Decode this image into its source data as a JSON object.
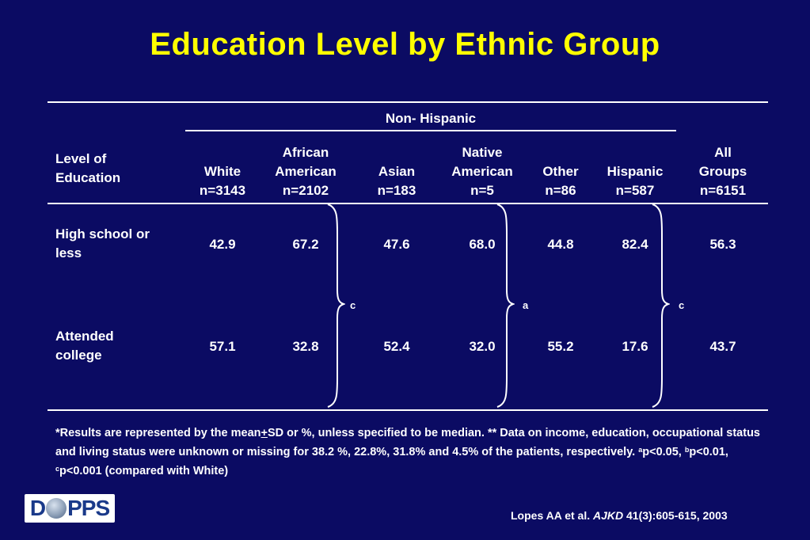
{
  "title": "Education Level by Ethnic Group",
  "table": {
    "group_header": "Non- Hispanic",
    "row_header": [
      "Level of",
      "Education"
    ],
    "columns": [
      {
        "name_lines": [
          "White"
        ],
        "n": "n=3143"
      },
      {
        "name_lines": [
          "African",
          "American"
        ],
        "n": "n=2102"
      },
      {
        "name_lines": [
          "Asian"
        ],
        "n": "n=183"
      },
      {
        "name_lines": [
          "Native",
          "American"
        ],
        "n": "n=5"
      },
      {
        "name_lines": [
          "Other"
        ],
        "n": "n=86"
      },
      {
        "name_lines": [
          "Hispanic"
        ],
        "n": "n=587"
      },
      {
        "name_lines": [
          "All",
          "Groups"
        ],
        "n": "n=6151"
      }
    ],
    "rows": [
      {
        "label_lines": [
          "High school or",
          "less"
        ],
        "values": [
          "42.9",
          "67.2",
          "47.6",
          "68.0",
          "44.8",
          "82.4",
          "56.3"
        ]
      },
      {
        "label_lines": [
          "Attended",
          "college"
        ],
        "values": [
          "57.1",
          "32.8",
          "52.4",
          "32.0",
          "55.2",
          "17.6",
          "43.7"
        ]
      }
    ],
    "brace_labels": [
      "c",
      "a",
      "c"
    ]
  },
  "footnote": {
    "part1": "*Results are represented by the mean",
    "pm": "+",
    "part2": "SD or %, unless specified to be median. ** Data on income, education, occupational status and living status were unknown or missing for 38.2 %, 22.8%, 31.8% and 4.5% of the patients, respectively.  ",
    "sig_a_sup": "a",
    "sig_a": "p<0.05, ",
    "sig_b_sup": "b",
    "sig_b": "p<0.01, ",
    "sig_c_sup": "c",
    "sig_c": "p<0.001 (compared with White)"
  },
  "citation": {
    "authors": "Lopes AA et al. ",
    "journal": "AJKD",
    "details": " 41(3):605-615, 2003"
  },
  "logo": {
    "left": "D",
    "right": "PPS"
  }
}
